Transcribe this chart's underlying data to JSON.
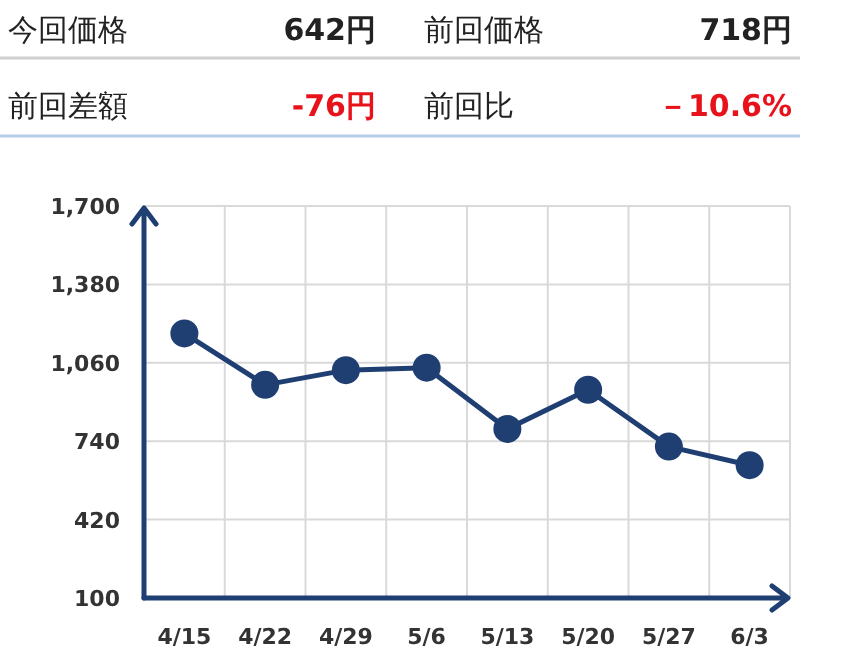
{
  "chart_data": [
    {
      "type": "other",
      "annotations": [
        "今回価格",
        "642円",
        "前回価格",
        "718円",
        "前回差額",
        "-76円",
        "前回比",
        "－10.6%"
      ]
    },
    {
      "type": "line",
      "categories": [
        "4/15",
        "4/22",
        "4/29",
        "5/6",
        "5/13",
        "5/20",
        "5/27",
        "6/3"
      ],
      "series": [
        {
          "color": "#1f3f73",
          "values": [
            1180,
            970,
            1030,
            1040,
            790,
            950,
            718,
            642
          ]
        }
      ],
      "ylim": [
        100,
        1700
      ],
      "yticks": [
        {
          "value": 100,
          "label": "100"
        },
        {
          "value": 420,
          "label": "420"
        },
        {
          "value": 740,
          "label": "740"
        },
        {
          "value": 1060,
          "label": "1,060"
        },
        {
          "value": 1380,
          "label": "1,380"
        },
        {
          "value": 1700,
          "label": "1,700"
        }
      ],
      "grid": true,
      "marker": "circle",
      "line_style": "solid"
    }
  ]
}
